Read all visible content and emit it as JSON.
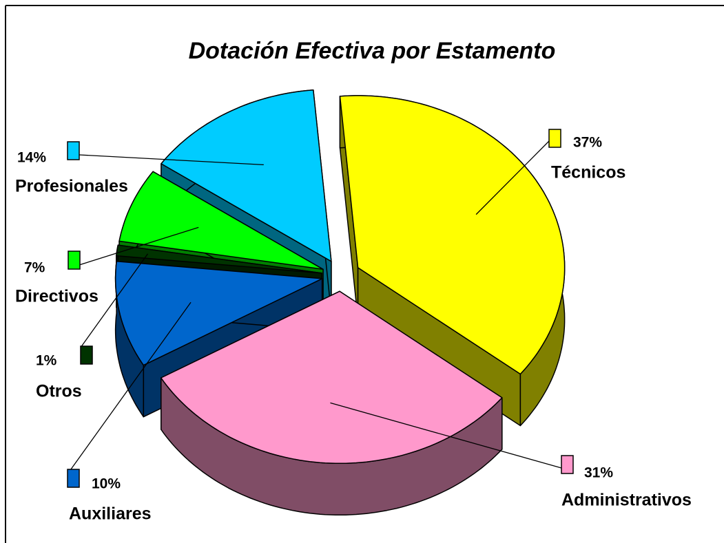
{
  "chart_data": {
    "type": "pie",
    "title": "Dotación Efectiva por Estamento",
    "categories": [
      "Técnicos",
      "Administrativos",
      "Auxiliares",
      "Otros",
      "Directivos",
      "Profesionales"
    ],
    "values": [
      37,
      31,
      10,
      1,
      7,
      14
    ],
    "value_labels": [
      "37%",
      "31%",
      "10%",
      "1%",
      "7%",
      "14%"
    ],
    "colors": [
      "#ffff00",
      "#ff99cc",
      "#0066cc",
      "#003300",
      "#00ff00",
      "#00ccff"
    ]
  }
}
